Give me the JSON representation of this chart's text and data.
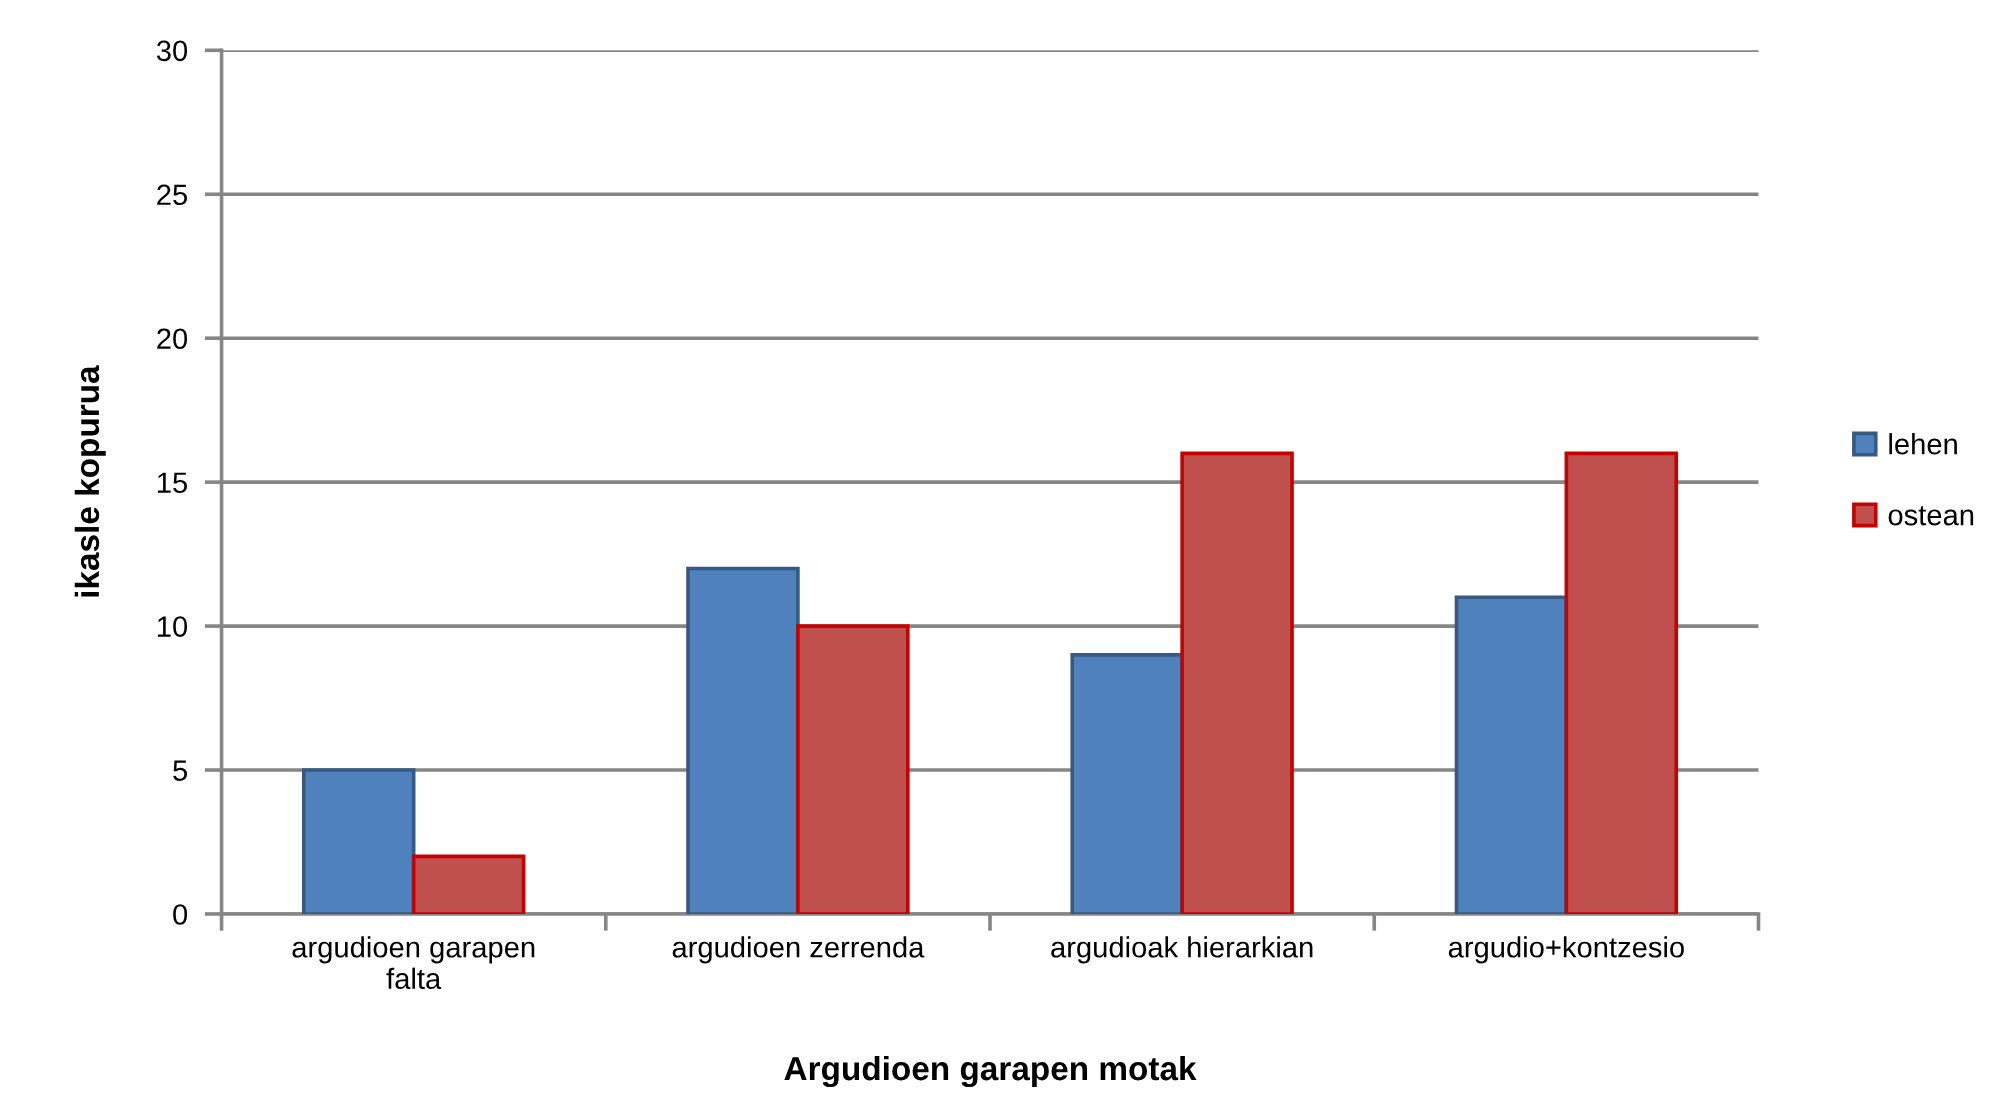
{
  "chart_data": {
    "type": "bar",
    "xlabel": "Argudioen garapen motak",
    "ylabel": "ikasle kopurua",
    "categories": [
      "argudioen garapen\nfalta",
      "argudioen zerrenda",
      "argudioak hierarkian",
      "argudio+kontzesio"
    ],
    "series": [
      {
        "name": "lehen",
        "color": "#4f81bd",
        "values": [
          5,
          12,
          9,
          11
        ]
      },
      {
        "name": "ostean",
        "color": "#c0504d",
        "values": [
          2,
          10,
          16,
          16
        ]
      }
    ],
    "ylim": [
      0,
      30
    ],
    "yticks": [
      0,
      5,
      10,
      15,
      20,
      25,
      30
    ],
    "grid": "y",
    "legend": "right"
  }
}
